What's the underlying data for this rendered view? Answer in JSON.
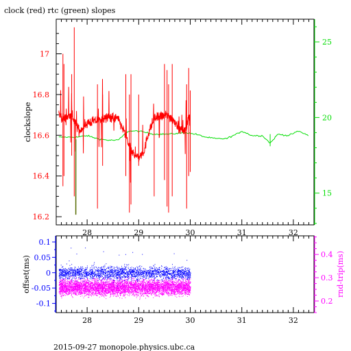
{
  "title": "clock (red) rtc (green) slopes",
  "footer": "2015-09-27 monopole.physics.ubc.ca",
  "colors": {
    "clock": "#ff0000",
    "rtc": "#00dd00",
    "rtc_dark": "#556b00",
    "offset": "#0000ff",
    "rndtrip": "#ff00ff",
    "axis": "#000000"
  },
  "chart_data": [
    {
      "type": "line",
      "title": "clock (red) rtc (green) slopes",
      "xlabel": "",
      "xlim": [
        27.4,
        32.4
      ],
      "x_ticks": [
        "28",
        "29",
        "30",
        "31",
        "32"
      ],
      "ylabel": "clockslope",
      "ylim": [
        16.16,
        17.17
      ],
      "y_ticks": [
        "16.2",
        "16.4",
        "16.6",
        "16.8",
        "17"
      ],
      "y2lim": [
        12.9,
        26.5
      ],
      "y2_ticks": [
        "15",
        "20",
        "25"
      ],
      "series": [
        {
          "name": "clock",
          "axis": "left",
          "x": [
            27.45,
            27.55,
            27.7,
            27.85,
            28.0,
            28.15,
            28.3,
            28.45,
            28.6,
            28.75,
            28.85,
            29.0,
            29.1,
            29.2,
            29.3,
            29.4,
            29.55,
            29.7,
            29.8,
            29.9,
            29.97,
            30.0
          ],
          "y": [
            16.7,
            16.68,
            16.7,
            16.62,
            16.66,
            16.67,
            16.68,
            16.69,
            16.68,
            16.6,
            16.52,
            16.49,
            16.52,
            16.62,
            16.68,
            16.69,
            16.7,
            16.67,
            16.63,
            16.62,
            16.7,
            16.64
          ]
        },
        {
          "name": "rtc",
          "axis": "right",
          "x": [
            27.45,
            27.8,
            28.0,
            28.2,
            28.4,
            28.6,
            28.8,
            29.0,
            29.3,
            29.6,
            29.9,
            30.1,
            30.3,
            30.5,
            30.7,
            30.9,
            31.0,
            31.2,
            31.4,
            31.55,
            31.7,
            31.9,
            32.1,
            32.3
          ],
          "y": [
            18.7,
            18.7,
            18.8,
            18.6,
            18.5,
            18.5,
            19.1,
            19.1,
            18.9,
            18.9,
            19.0,
            18.9,
            18.7,
            18.6,
            18.6,
            18.9,
            19.1,
            18.8,
            18.8,
            18.3,
            18.9,
            18.8,
            19.1,
            18.8
          ]
        }
      ],
      "notes": "Dense clock-slope samples with large spikes between 27.5 and 30."
    },
    {
      "type": "scatter",
      "xlim": [
        27.4,
        32.4
      ],
      "x_ticks": [
        "28",
        "29",
        "30",
        "31",
        "32"
      ],
      "ylabel": "offset(ms)",
      "ylim": [
        -0.13,
        0.12
      ],
      "y_ticks": [
        "-0.1",
        "-0.05",
        "0",
        "0.05",
        "0.1"
      ],
      "y2label": "rnd-trip(ms)",
      "y2lim": [
        0.15,
        0.48
      ],
      "y2_ticks": [
        "0.2",
        "0.3",
        "0.4"
      ],
      "series": [
        {
          "name": "offset",
          "axis": "left",
          "x_range": [
            27.45,
            30.0
          ],
          "center": 0.0,
          "spread": 0.03
        },
        {
          "name": "rnd-trip",
          "axis": "right",
          "x_range": [
            27.45,
            30.0
          ],
          "center": 0.26,
          "spread": 0.05
        }
      ]
    }
  ]
}
